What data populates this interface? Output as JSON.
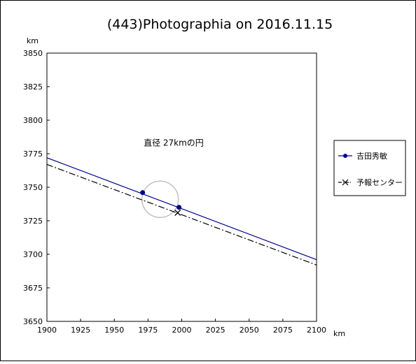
{
  "chart_data": {
    "type": "line",
    "title": "(443)Photographia on 2016.11.15",
    "xlabel": "km",
    "ylabel": "km",
    "xlim": [
      1900,
      2100
    ],
    "ylim": [
      3650,
      3850
    ],
    "x_ticks": [
      1900,
      1925,
      1950,
      1975,
      2000,
      2025,
      2050,
      2075,
      2100
    ],
    "y_ticks": [
      3650,
      3675,
      3700,
      3725,
      3750,
      3775,
      3800,
      3825,
      3850
    ],
    "grid": false,
    "legend_position": "right",
    "annotation": {
      "text": "直径 27kmの円",
      "x": 1994,
      "y": 3781
    },
    "circle": {
      "center_x": 1984,
      "center_y": 3741,
      "diameter_km": 27,
      "color": "#c0c0c0"
    },
    "series": [
      {
        "name": "吉田秀敏",
        "color": "#00008b",
        "line_style": "solid",
        "marker": "circle",
        "line": {
          "x": [
            1900,
            2100
          ],
          "y": [
            3772,
            3696
          ]
        },
        "points": {
          "x": [
            1971,
            1998
          ],
          "y": [
            3746,
            3735
          ]
        }
      },
      {
        "name": "予報センター",
        "color": "#000000",
        "line_style": "dash-dot",
        "marker": "x",
        "line": {
          "x": [
            1900,
            2100
          ],
          "y": [
            3767,
            3692
          ]
        },
        "points": {
          "x": [
            1997
          ],
          "y": [
            3731
          ]
        }
      }
    ]
  }
}
